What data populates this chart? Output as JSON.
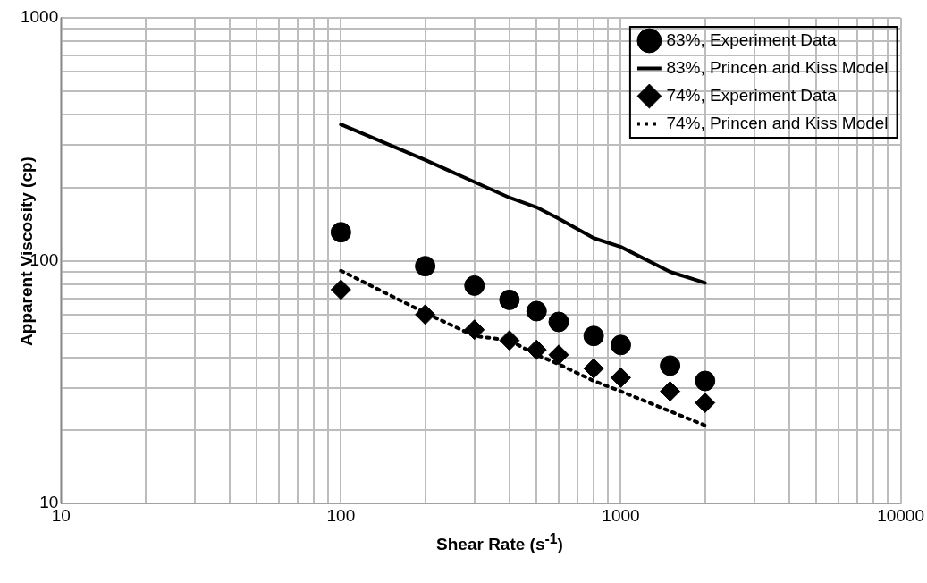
{
  "chart_data": {
    "type": "scatter",
    "xlabel": "Shear Rate (s$^{-1}$)",
    "ylabel": "Apparent Viscosity (cp)",
    "log": "xy",
    "grid": true,
    "legend": "top right",
    "xlim": [
      10,
      10000
    ],
    "ylim": [
      10,
      1000
    ],
    "xticks": [
      10,
      {
        "value": 20,
        "label": null
      },
      {
        "value": 30,
        "label": null
      },
      {
        "value": 40,
        "label": null
      },
      {
        "value": 50,
        "label": null
      },
      {
        "value": 60,
        "label": null
      },
      {
        "value": 70,
        "label": null
      },
      {
        "value": 80,
        "label": null
      },
      {
        "value": 90,
        "label": null
      },
      100,
      {
        "value": 200,
        "label": null
      },
      {
        "value": 300,
        "label": null
      },
      {
        "value": 400,
        "label": null
      },
      {
        "value": 500,
        "label": null
      },
      {
        "value": 600,
        "label": null
      },
      {
        "value": 700,
        "label": null
      },
      {
        "value": 800,
        "label": null
      },
      {
        "value": 900,
        "label": null
      },
      1000,
      {
        "value": 2000,
        "label": null
      },
      {
        "value": 3000,
        "label": null
      },
      {
        "value": 4000,
        "label": null
      },
      {
        "value": 5000,
        "label": null
      },
      {
        "value": 6000,
        "label": null
      },
      {
        "value": 7000,
        "label": null
      },
      {
        "value": 8000,
        "label": null
      },
      {
        "value": 9000,
        "label": null
      },
      10000
    ],
    "yticks": [
      10,
      {
        "value": 20,
        "label": null
      },
      {
        "value": 30,
        "label": null
      },
      {
        "value": 40,
        "label": null
      },
      {
        "value": 50,
        "label": null
      },
      {
        "value": 60,
        "label": null
      },
      {
        "value": 70,
        "label": null
      },
      {
        "value": 80,
        "label": null
      },
      {
        "value": 90,
        "label": null
      },
      100,
      {
        "value": 200,
        "label": null
      },
      {
        "value": 300,
        "label": null
      },
      {
        "value": 400,
        "label": null
      },
      {
        "value": 500,
        "label": null
      },
      {
        "value": 600,
        "label": null
      },
      {
        "value": 700,
        "label": null
      },
      {
        "value": 800,
        "label": null
      },
      {
        "value": 900,
        "label": null
      },
      1000
    ],
    "x": [
      100,
      200,
      300,
      400,
      500,
      600,
      800,
      1000,
      1500,
      2000
    ],
    "series": [
      {
        "name": "83%, Experiment Data",
        "type": "scatter",
        "marker": "circle",
        "color": "#000000",
        "values": [
          131,
          95,
          79,
          69,
          62,
          56,
          49,
          45,
          37,
          32
        ]
      },
      {
        "name": "83%, Princen and Kiss Model",
        "type": "line",
        "marker": "none",
        "line_style": "solid",
        "color": "#000000",
        "values": [
          364,
          260,
          211,
          182,
          166,
          149,
          124,
          114,
          90,
          81
        ]
      },
      {
        "name": "74%, Experiment Data",
        "type": "scatter",
        "marker": "diamond",
        "color": "#000000",
        "values": [
          76,
          60,
          52,
          47,
          43,
          41,
          36,
          33,
          29,
          26
        ]
      },
      {
        "name": "74%, Princen and Kiss Model",
        "type": "line",
        "marker": "none",
        "line_style": "dotted",
        "color": "#000000",
        "values": [
          91,
          61,
          49,
          47,
          41,
          37.5,
          32,
          29,
          24,
          21
        ]
      }
    ]
  }
}
